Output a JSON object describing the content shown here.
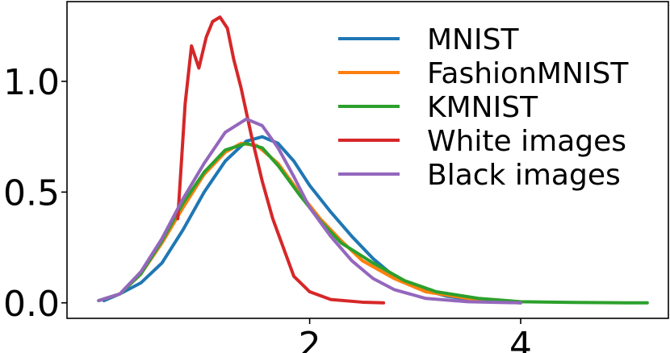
{
  "chart_data": {
    "type": "line",
    "title": "",
    "xlabel": "",
    "ylabel": "",
    "xlim": [
      -0.3,
      5.4
    ],
    "ylim": [
      -0.07,
      1.36
    ],
    "xticks": [
      {
        "value": 2,
        "label": "2"
      },
      {
        "value": 4,
        "label": "4"
      }
    ],
    "yticks": [
      {
        "value": 0.0,
        "label": "0.0"
      },
      {
        "value": 0.5,
        "label": "0.5"
      },
      {
        "value": 1.0,
        "label": "1.0"
      }
    ],
    "grid": false,
    "legend_position": "top-right",
    "series": [
      {
        "name": "MNIST",
        "color": "#1f77b4",
        "x": [
          0.05,
          0.2,
          0.4,
          0.6,
          0.8,
          1.0,
          1.2,
          1.4,
          1.55,
          1.7,
          1.85,
          2.0,
          2.2,
          2.4,
          2.6,
          2.8,
          3.0,
          3.3,
          3.6,
          4.0
        ],
        "y": [
          0.01,
          0.04,
          0.09,
          0.18,
          0.33,
          0.5,
          0.64,
          0.73,
          0.75,
          0.72,
          0.64,
          0.53,
          0.41,
          0.3,
          0.2,
          0.12,
          0.07,
          0.03,
          0.01,
          0.0
        ]
      },
      {
        "name": "FashionMNIST",
        "color": "#ff7f0e",
        "x": [
          0.0,
          0.2,
          0.4,
          0.6,
          0.8,
          1.0,
          1.2,
          1.35,
          1.5,
          1.7,
          1.9,
          2.1,
          2.3,
          2.5,
          2.8,
          3.1,
          3.5,
          4.0
        ],
        "y": [
          0.01,
          0.04,
          0.13,
          0.27,
          0.43,
          0.58,
          0.68,
          0.72,
          0.71,
          0.63,
          0.5,
          0.38,
          0.28,
          0.19,
          0.11,
          0.05,
          0.02,
          0.0
        ]
      },
      {
        "name": "KMNIST",
        "color": "#2ca02c",
        "x": [
          0.0,
          0.2,
          0.4,
          0.6,
          0.8,
          1.0,
          1.2,
          1.4,
          1.55,
          1.7,
          1.9,
          2.1,
          2.3,
          2.6,
          2.9,
          3.2,
          3.6,
          4.0,
          4.5,
          5.0,
          5.2
        ],
        "y": [
          0.01,
          0.04,
          0.13,
          0.28,
          0.45,
          0.59,
          0.69,
          0.72,
          0.7,
          0.62,
          0.49,
          0.37,
          0.27,
          0.18,
          0.1,
          0.05,
          0.02,
          0.005,
          0.002,
          0.0,
          0.0
        ]
      },
      {
        "name": "White images",
        "color": "#d62728",
        "x": [
          0.75,
          0.82,
          0.88,
          0.95,
          1.02,
          1.08,
          1.15,
          1.22,
          1.28,
          1.35,
          1.45,
          1.55,
          1.65,
          1.75,
          1.85,
          2.0,
          2.2,
          2.5,
          2.7
        ],
        "y": [
          0.38,
          0.9,
          1.16,
          1.06,
          1.2,
          1.27,
          1.29,
          1.24,
          1.1,
          0.97,
          0.75,
          0.55,
          0.38,
          0.25,
          0.12,
          0.05,
          0.015,
          0.003,
          0.0
        ]
      },
      {
        "name": "Black images",
        "color": "#9467bd",
        "x": [
          0.0,
          0.2,
          0.4,
          0.6,
          0.8,
          1.0,
          1.2,
          1.4,
          1.55,
          1.7,
          1.85,
          2.0,
          2.2,
          2.4,
          2.6,
          2.8,
          3.1,
          3.5,
          4.0
        ],
        "y": [
          0.01,
          0.04,
          0.14,
          0.29,
          0.47,
          0.63,
          0.77,
          0.83,
          0.8,
          0.7,
          0.57,
          0.43,
          0.3,
          0.19,
          0.11,
          0.06,
          0.02,
          0.005,
          0.0
        ]
      }
    ]
  }
}
